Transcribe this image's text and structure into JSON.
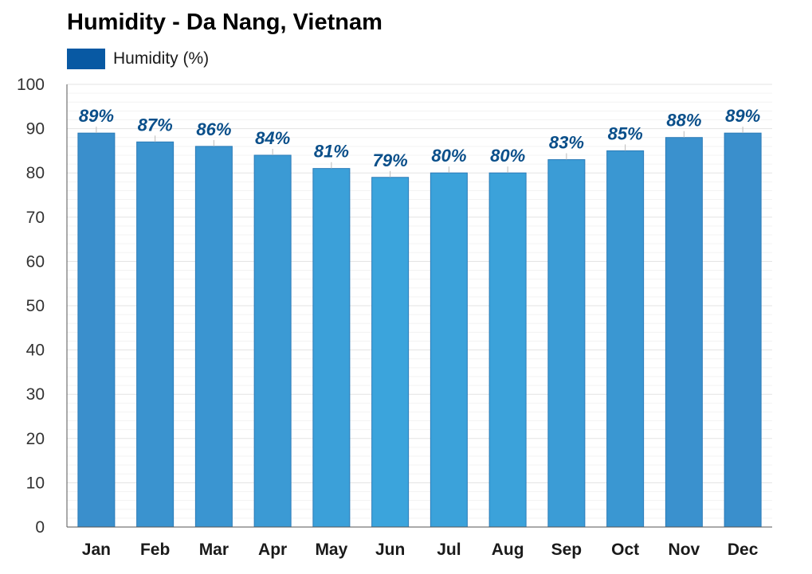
{
  "title": "Humidity - Da Nang, Vietnam",
  "legend": {
    "label": "Humidity (%)",
    "color": "#0859a3"
  },
  "chart_data": {
    "type": "bar",
    "title": "Humidity - Da Nang, Vietnam",
    "xlabel": "",
    "ylabel": "",
    "categories": [
      "Jan",
      "Feb",
      "Mar",
      "Apr",
      "May",
      "Jun",
      "Jul",
      "Aug",
      "Sep",
      "Oct",
      "Nov",
      "Dec"
    ],
    "series": [
      {
        "name": "Humidity (%)",
        "values": [
          89,
          87,
          86,
          84,
          81,
          79,
          80,
          80,
          83,
          85,
          88,
          89
        ],
        "data_labels": [
          "89%",
          "87%",
          "86%",
          "84%",
          "81%",
          "79%",
          "80%",
          "80%",
          "83%",
          "85%",
          "88%",
          "89%"
        ]
      }
    ],
    "ylim": [
      0,
      100
    ],
    "yticks": [
      0,
      10,
      20,
      30,
      40,
      50,
      60,
      70,
      80,
      90,
      100
    ],
    "grid": true,
    "legend_position": "top-left",
    "colors": {
      "bar_high": "#3a8fcc",
      "bar_low": "#3ba4dc",
      "bar_stroke": "#2b7bb8",
      "data_label": "#0a4f8a",
      "grid": "#e8e8e8",
      "axis": "#555555"
    }
  }
}
